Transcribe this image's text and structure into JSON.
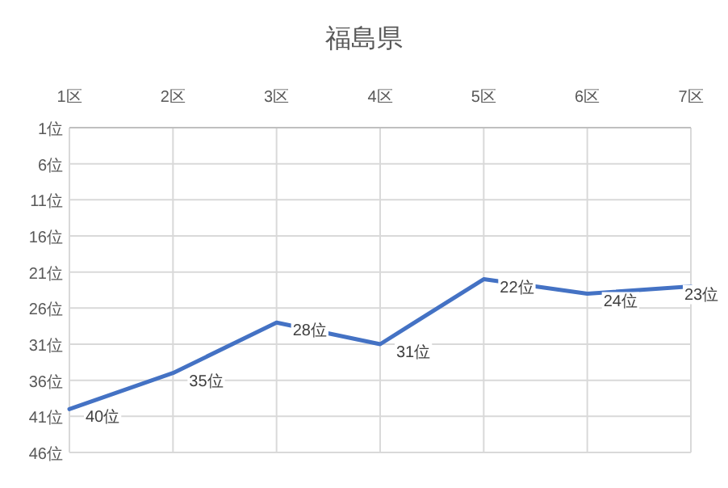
{
  "chart_data": {
    "type": "line",
    "title": "福島県",
    "categories": [
      "1区",
      "2区",
      "3区",
      "4区",
      "5区",
      "6区",
      "7区"
    ],
    "series": [
      {
        "color": "#4472c4",
        "values": [
          40,
          35,
          28,
          31,
          22,
          24,
          23
        ],
        "value_labels": [
          "40位",
          "35位",
          "28位",
          "31位",
          "22位",
          "24位",
          "23位"
        ]
      }
    ],
    "ylim": [
      46,
      1
    ],
    "yticks": [
      {
        "value": 1,
        "label": "1位"
      },
      {
        "value": 6,
        "label": "6位"
      },
      {
        "value": 11,
        "label": "11位"
      },
      {
        "value": 16,
        "label": "16位"
      },
      {
        "value": 21,
        "label": "21位"
      },
      {
        "value": 26,
        "label": "26位"
      },
      {
        "value": 31,
        "label": "31位"
      },
      {
        "value": 36,
        "label": "36位"
      },
      {
        "value": 41,
        "label": "41位"
      },
      {
        "value": 46,
        "label": "46位"
      }
    ],
    "grid": true
  }
}
